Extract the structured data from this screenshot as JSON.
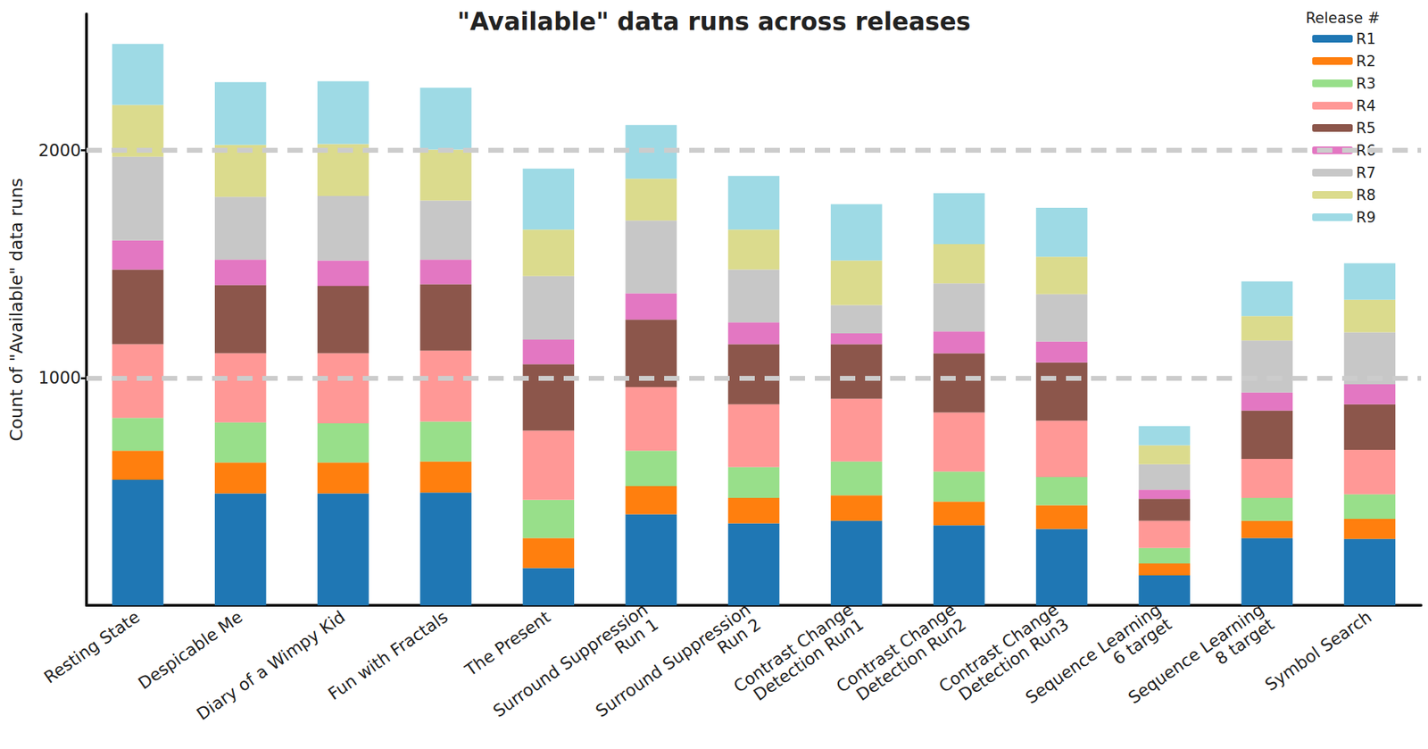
{
  "chart_data": {
    "type": "bar",
    "title": "\"Available\" data runs across releases",
    "y_label": "Count of \"Available\" data runs",
    "legend_title": "Release #",
    "legend": "top-right",
    "stacked": true,
    "grid": true,
    "ylim": [
      0,
      2600
    ],
    "yticks": [
      1000,
      2000
    ],
    "categories": [
      "Resting State",
      "Despicable Me",
      "Diary of a Wimpy Kid",
      "Fun with Fractals",
      "The Present",
      "Surround Suppression\nRun 1",
      "Surround Suppression\nRun 2",
      "Contrast Change\nDetection Run1",
      "Contrast Change\nDetection Run2",
      "Contrast Change\nDetection Run3",
      "Sequence Learning\n6 target",
      "Sequence Learning\n8 target",
      "Symbol Search"
    ],
    "series": [
      {
        "name": "R1",
        "color": "#1f77b4",
        "values": [
          552,
          492,
          492,
          496,
          164,
          400,
          360,
          372,
          352,
          336,
          132,
          296,
          292
        ]
      },
      {
        "name": "R2",
        "color": "#ff7f0e",
        "values": [
          128,
          136,
          136,
          136,
          132,
          124,
          112,
          112,
          104,
          104,
          52,
          76,
          88
        ]
      },
      {
        "name": "R3",
        "color": "#98df8a",
        "values": [
          144,
          176,
          172,
          176,
          168,
          156,
          136,
          148,
          132,
          124,
          68,
          100,
          108
        ]
      },
      {
        "name": "R4",
        "color": "#ff9896",
        "values": [
          324,
          304,
          308,
          312,
          304,
          280,
          276,
          276,
          260,
          248,
          120,
          172,
          196
        ]
      },
      {
        "name": "R5",
        "color": "#8c564b",
        "values": [
          328,
          300,
          296,
          292,
          292,
          296,
          264,
          240,
          260,
          256,
          96,
          212,
          200
        ]
      },
      {
        "name": "R6",
        "color": "#e377c2",
        "values": [
          128,
          112,
          112,
          108,
          108,
          116,
          96,
          48,
          96,
          92,
          40,
          80,
          88
        ]
      },
      {
        "name": "R7",
        "color": "#c7c7c7",
        "values": [
          368,
          276,
          284,
          260,
          280,
          320,
          232,
          124,
          212,
          208,
          112,
          228,
          228
        ]
      },
      {
        "name": "R8",
        "color": "#dbdb8d",
        "values": [
          228,
          228,
          228,
          224,
          204,
          184,
          176,
          196,
          172,
          164,
          84,
          108,
          144
        ]
      },
      {
        "name": "R9",
        "color": "#9edae5",
        "values": [
          268,
          276,
          276,
          272,
          268,
          236,
          236,
          248,
          224,
          216,
          84,
          152,
          160
        ]
      }
    ]
  }
}
